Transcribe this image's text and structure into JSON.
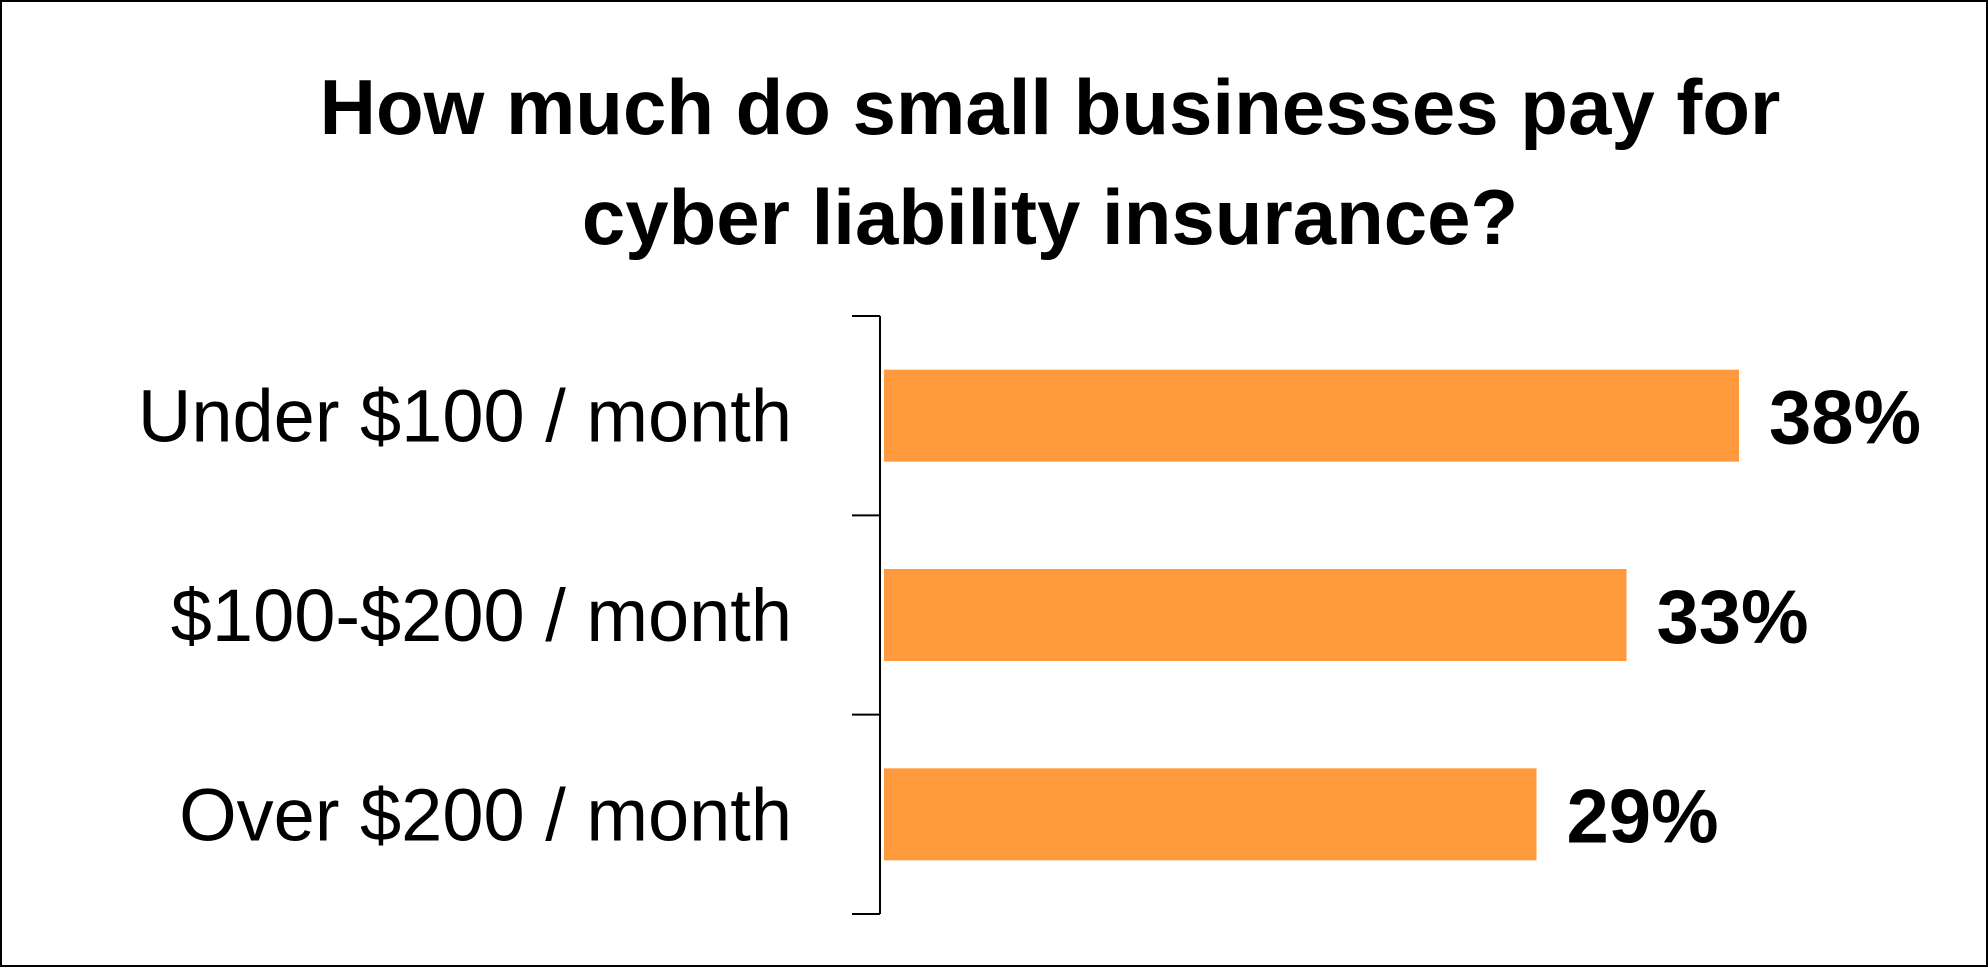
{
  "chart_data": {
    "type": "bar",
    "orientation": "horizontal",
    "title_lines": [
      "How much do small businesses pay for",
      "cyber liability insurance?"
    ],
    "categories": [
      "Under $100 / month",
      "$100-$200 / month",
      "Over $200 / month"
    ],
    "values": [
      38,
      33,
      29
    ],
    "data_labels": [
      "38%",
      "33%",
      "29%"
    ],
    "xlim": [
      0,
      40
    ],
    "grid": false,
    "legend": "none",
    "bar_color": "#FF9A3C"
  }
}
